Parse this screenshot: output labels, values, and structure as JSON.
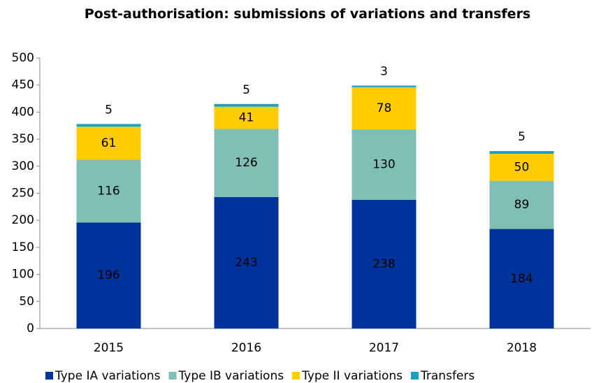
{
  "chart_data": {
    "type": "stacked_bar",
    "title": "Post-authorisation: submissions of variations and transfers",
    "categories": [
      "2015",
      "2016",
      "2017",
      "2018"
    ],
    "series": [
      {
        "name": "Type IA variations",
        "color": "#003399",
        "label_color": "#ffffff",
        "values": [
          196,
          243,
          238,
          184
        ]
      },
      {
        "name": "Type IB variations",
        "color": "#80bfb3",
        "label_color": "#000000",
        "values": [
          116,
          126,
          130,
          89
        ]
      },
      {
        "name": "Type II variations",
        "color": "#ffcc00",
        "label_color": "#000000",
        "values": [
          61,
          41,
          78,
          50
        ]
      },
      {
        "name": "Transfers",
        "color": "#1b9fc0",
        "label_color": "#000000",
        "values": [
          5,
          5,
          3,
          5
        ]
      }
    ],
    "ylim": [
      0,
      500
    ],
    "yticks": [
      0,
      50,
      100,
      150,
      200,
      250,
      300,
      350,
      400,
      450,
      500
    ],
    "grid": false,
    "legend": "bottom"
  }
}
